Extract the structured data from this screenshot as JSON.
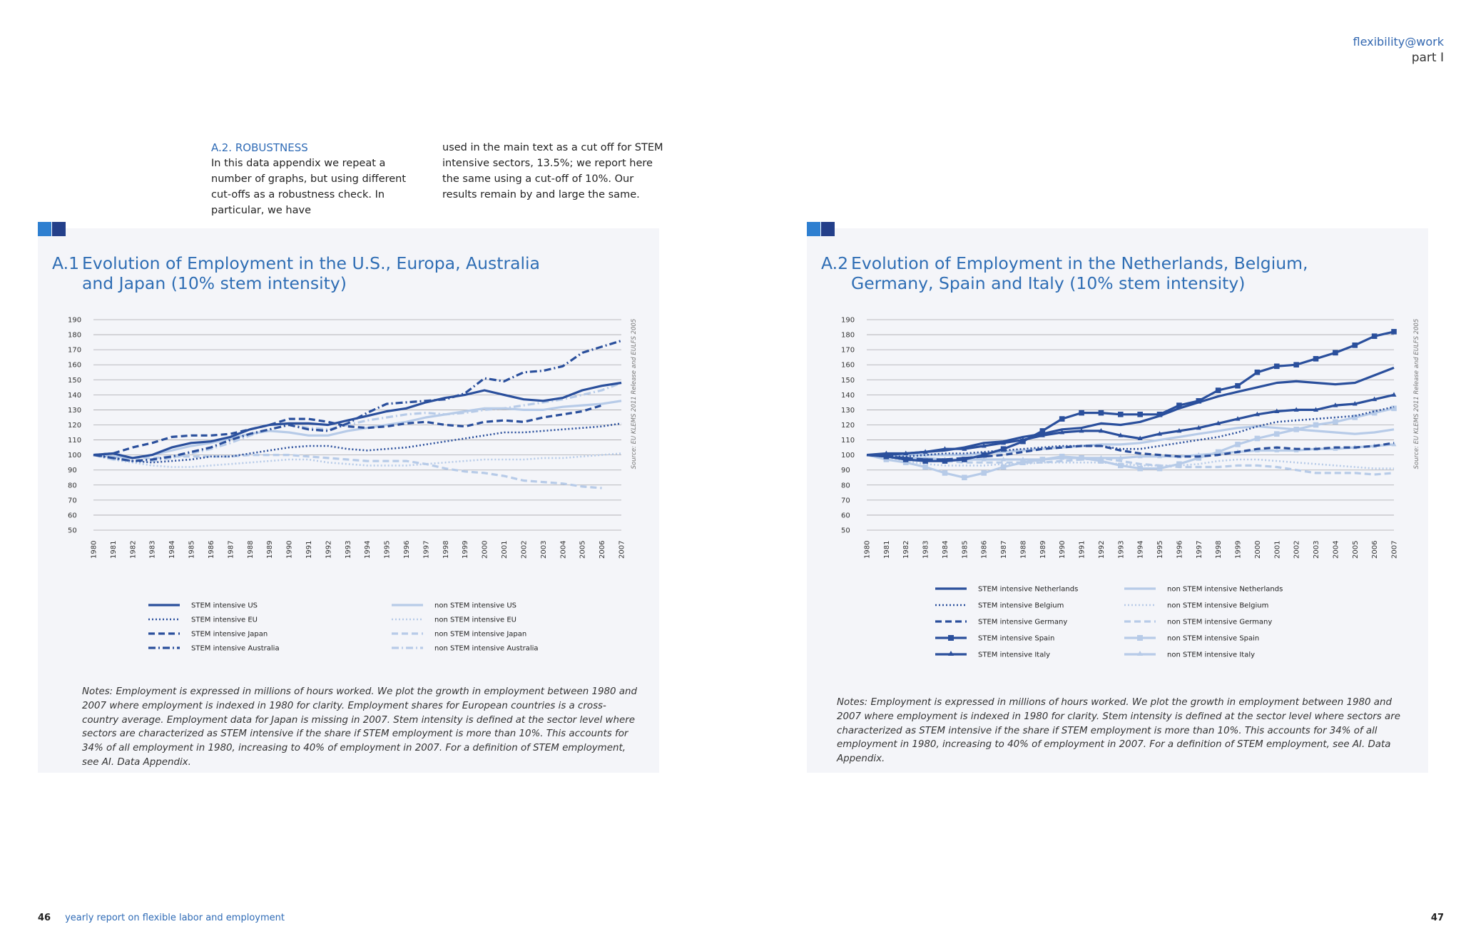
{
  "header": {
    "brand": "flexibility@work",
    "part": "part I"
  },
  "intro": {
    "heading": "A.2. ROBUSTNESS",
    "col1": "In this data appendix we repeat a number of graphs, but using different cut-offs as a robustness check. In particular, we have",
    "col2": "used in the main text as a cut off for STEM intensive sectors, 13.5%; we report here the same using a cut-off of 10%. Our results remain by and large the same."
  },
  "footer": {
    "left_page": "46",
    "left_title": "yearly report on flexible labor and employment",
    "right_page": "47"
  },
  "colors": {
    "dark": "#2a4f9c",
    "mid": "#2d5aa8",
    "light": "#b7cbe8",
    "panel": "#f4f5f9",
    "title": "#2e6db4"
  },
  "left_panel": {
    "title_num": "A.1",
    "title_line1": "Evolution of Employment in the U.S., Europa, Australia",
    "title_line2": "and Japan (10% stem intensity)",
    "notes": "Notes:  Employment is expressed in millions of hours worked. We plot the growth in employment between 1980 and 2007 where employment is indexed in 1980 for clarity. Employment shares for European countries is a cross-country average. Employment data for Japan is missing in 2007. Stem intensity is defined at the sector level where sectors are characterized as STEM intensive if the share if STEM employment is more than 10%. This accounts for 34% of all employment in 1980, increasing to 40% of employment in 2007. For a definition of STEM employment, see AI. Data Appendix."
  },
  "right_panel": {
    "title_num": "A.2",
    "title_line1": "Evolution of Employment in the Netherlands, Belgium,",
    "title_line2": "Germany, Spain and Italy (10% stem intensity)",
    "notes": "Notes:  Employment is expressed in millions of hours worked. We plot the growth in employment between 1980 and 2007 where employment is indexed in 1980 for clarity. Stem intensity is defined at the sector level where sectors are characterized as STEM intensive if the share if STEM employment is more than 10%. This accounts for 34% of all employment in 1980, increasing to 40% of employment in 2007.  For a definition of STEM employment, see AI. Data Appendix."
  },
  "chart_data": [
    {
      "type": "line",
      "title": "A.1 Evolution of Employment in the U.S., Europa, Australia and Japan (10% stem intensity)",
      "source": "Source: EU KLEMS 2011 Release and EULFS 2005",
      "ylim": [
        50,
        190
      ],
      "yticks": [
        50,
        60,
        70,
        80,
        90,
        100,
        110,
        120,
        130,
        140,
        150,
        160,
        170,
        180,
        190
      ],
      "grid": true,
      "legend_position": "bottom",
      "x": [
        "1980",
        "1981",
        "1982",
        "1983",
        "1984",
        "1985",
        "1986",
        "1987",
        "1988",
        "1989",
        "1990",
        "1991",
        "1992",
        "1993",
        "1994",
        "1995",
        "1996",
        "1997",
        "1998",
        "1999",
        "2000",
        "2001",
        "2002",
        "2003",
        "2004",
        "2005",
        "2006",
        "2007"
      ],
      "series": [
        {
          "name": "STEM intensive US",
          "color": "#2a4f9c",
          "dash": "solid",
          "values": [
            100,
            101,
            98,
            100,
            105,
            108,
            109,
            112,
            117,
            120,
            121,
            121,
            120,
            123,
            126,
            129,
            131,
            135,
            138,
            140,
            143,
            140,
            137,
            136,
            138,
            143,
            146,
            148
          ]
        },
        {
          "name": "STEM intensive EU",
          "color": "#2a4f9c",
          "dash": "dotted",
          "values": [
            100,
            98,
            96,
            95,
            96,
            97,
            99,
            99,
            101,
            103,
            105,
            106,
            106,
            104,
            103,
            104,
            105,
            107,
            109,
            111,
            113,
            115,
            115,
            116,
            117,
            118,
            119,
            121
          ]
        },
        {
          "name": "STEM intensive Japan",
          "color": "#2a4f9c",
          "dash": "dashed",
          "values": [
            100,
            101,
            105,
            108,
            112,
            113,
            113,
            114,
            117,
            120,
            124,
            124,
            122,
            119,
            118,
            119,
            121,
            122,
            120,
            119,
            122,
            123,
            122,
            125,
            127,
            129,
            133,
            null
          ]
        },
        {
          "name": "STEM intensive Australia",
          "color": "#2a4f9c",
          "dash": "dashdot",
          "values": [
            100,
            98,
            96,
            97,
            99,
            102,
            105,
            110,
            114,
            117,
            120,
            117,
            116,
            121,
            128,
            134,
            135,
            136,
            137,
            141,
            151,
            149,
            155,
            156,
            159,
            168,
            172,
            176
          ]
        },
        {
          "name": "non STEM intensive US",
          "color": "#b7cbe8",
          "dash": "solid",
          "values": [
            100,
            99,
            98,
            100,
            103,
            106,
            108,
            111,
            114,
            116,
            115,
            113,
            113,
            116,
            118,
            120,
            122,
            125,
            127,
            129,
            131,
            131,
            130,
            130,
            132,
            133,
            134,
            136
          ]
        },
        {
          "name": "non STEM intensive EU",
          "color": "#b7cbe8",
          "dash": "dotted",
          "values": [
            100,
            97,
            95,
            93,
            92,
            92,
            93,
            94,
            95,
            96,
            97,
            97,
            95,
            94,
            93,
            93,
            93,
            94,
            95,
            96,
            97,
            97,
            97,
            98,
            98,
            99,
            100,
            101
          ]
        },
        {
          "name": "non STEM intensive Japan",
          "color": "#b7cbe8",
          "dash": "dashed",
          "values": [
            100,
            99,
            98,
            98,
            99,
            99,
            99,
            99,
            100,
            100,
            100,
            99,
            98,
            97,
            96,
            96,
            96,
            94,
            91,
            89,
            88,
            86,
            83,
            82,
            81,
            79,
            78,
            null
          ]
        },
        {
          "name": "non STEM intensive Australia",
          "color": "#b7cbe8",
          "dash": "dashdot",
          "values": [
            100,
            97,
            96,
            96,
            98,
            101,
            104,
            108,
            113,
            117,
            120,
            118,
            117,
            120,
            123,
            125,
            127,
            128,
            127,
            128,
            130,
            131,
            133,
            135,
            137,
            140,
            143,
            148
          ]
        }
      ]
    },
    {
      "type": "line",
      "title": "A.2 Evolution of Employment in the Netherlands, Belgium, Germany, Spain and Italy (10% stem intensity)",
      "source": "Source: EU KLEMS 2011 Release and EULFS 2005",
      "ylim": [
        50,
        190
      ],
      "yticks": [
        50,
        60,
        70,
        80,
        90,
        100,
        110,
        120,
        130,
        140,
        150,
        160,
        170,
        180,
        190
      ],
      "grid": true,
      "legend_position": "bottom",
      "x": [
        "1980",
        "1981",
        "1982",
        "1983",
        "1984",
        "1985",
        "1986",
        "1987",
        "1988",
        "1989",
        "1990",
        "1991",
        "1992",
        "1993",
        "1994",
        "1995",
        "1996",
        "1997",
        "1998",
        "1999",
        "2000",
        "2001",
        "2002",
        "2003",
        "2004",
        "2005",
        "2006",
        "2007"
      ],
      "series": [
        {
          "name": "STEM intensive Netherlands",
          "color": "#2a4f9c",
          "dash": "solid",
          "marker": "none",
          "values": [
            100,
            100,
            101,
            102,
            103,
            105,
            108,
            109,
            112,
            114,
            117,
            118,
            121,
            120,
            122,
            126,
            131,
            135,
            139,
            142,
            145,
            148,
            149,
            148,
            147,
            148,
            153,
            158
          ]
        },
        {
          "name": "STEM intensive Belgium",
          "color": "#2a4f9c",
          "dash": "dotted",
          "marker": "none",
          "values": [
            100,
            99,
            99,
            100,
            101,
            101,
            102,
            103,
            104,
            105,
            106,
            106,
            106,
            104,
            104,
            106,
            108,
            110,
            112,
            115,
            119,
            122,
            123,
            124,
            125,
            126,
            129,
            132
          ]
        },
        {
          "name": "STEM intensive Germany",
          "color": "#2a4f9c",
          "dash": "dashed",
          "marker": "none",
          "values": [
            100,
            99,
            98,
            97,
            97,
            98,
            99,
            100,
            102,
            104,
            105,
            106,
            106,
            103,
            101,
            100,
            99,
            99,
            100,
            102,
            104,
            105,
            104,
            104,
            105,
            105,
            106,
            108
          ]
        },
        {
          "name": "STEM intensive Spain",
          "color": "#2a4f9c",
          "dash": "solid",
          "marker": "square",
          "values": [
            100,
            99,
            97,
            96,
            96,
            97,
            100,
            104,
            109,
            116,
            124,
            128,
            128,
            127,
            127,
            127,
            133,
            136,
            143,
            146,
            155,
            159,
            160,
            164,
            168,
            173,
            179,
            182
          ]
        },
        {
          "name": "STEM intensive Italy",
          "color": "#2a4f9c",
          "dash": "solid",
          "marker": "triangle",
          "values": [
            100,
            101,
            101,
            102,
            104,
            104,
            106,
            108,
            110,
            113,
            115,
            116,
            116,
            113,
            111,
            114,
            116,
            118,
            121,
            124,
            127,
            129,
            130,
            130,
            133,
            134,
            137,
            140
          ]
        },
        {
          "name": "non STEM intensive Netherlands",
          "color": "#b7cbe8",
          "dash": "solid",
          "marker": "none",
          "values": [
            100,
            100,
            100,
            100,
            100,
            100,
            101,
            102,
            103,
            104,
            105,
            106,
            107,
            107,
            108,
            110,
            112,
            114,
            116,
            118,
            119,
            118,
            117,
            116,
            115,
            114,
            115,
            117
          ]
        },
        {
          "name": "non STEM intensive Belgium",
          "color": "#b7cbe8",
          "dash": "dotted",
          "marker": "none",
          "values": [
            100,
            98,
            96,
            94,
            93,
            93,
            93,
            94,
            94,
            95,
            95,
            95,
            95,
            94,
            93,
            93,
            93,
            94,
            96,
            97,
            97,
            96,
            95,
            94,
            93,
            92,
            91,
            91
          ]
        },
        {
          "name": "non STEM intensive Germany",
          "color": "#b7cbe8",
          "dash": "dashed",
          "marker": "none",
          "values": [
            100,
            99,
            98,
            97,
            96,
            95,
            95,
            95,
            95,
            95,
            96,
            97,
            98,
            96,
            94,
            93,
            92,
            92,
            92,
            93,
            93,
            92,
            90,
            88,
            88,
            88,
            87,
            88
          ]
        },
        {
          "name": "non STEM intensive Spain",
          "color": "#b7cbe8",
          "dash": "solid",
          "marker": "square",
          "values": [
            100,
            97,
            95,
            92,
            88,
            85,
            88,
            92,
            95,
            97,
            99,
            98,
            96,
            93,
            91,
            91,
            94,
            98,
            102,
            107,
            111,
            114,
            117,
            120,
            122,
            125,
            128,
            131
          ]
        },
        {
          "name": "non STEM intensive Italy",
          "color": "#b7cbe8",
          "dash": "solid",
          "marker": "triangle",
          "values": [
            100,
            99,
            98,
            98,
            97,
            97,
            97,
            97,
            97,
            97,
            98,
            98,
            98,
            98,
            99,
            99,
            99,
            100,
            101,
            102,
            103,
            103,
            103,
            104,
            104,
            105,
            106,
            107
          ]
        }
      ]
    }
  ]
}
